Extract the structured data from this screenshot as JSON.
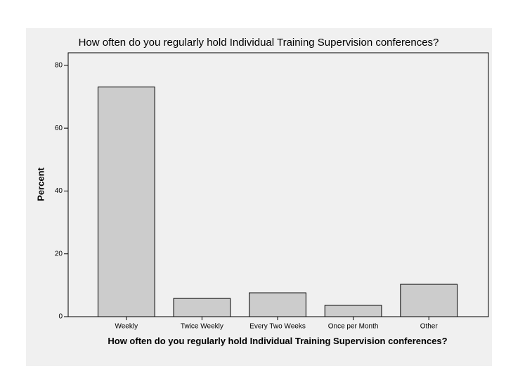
{
  "chart_data": {
    "type": "bar",
    "title": "How often do you regularly hold Individual Training Supervision conferences?",
    "x_label": "How often do you regularly hold Individual Training Supervision conferences?",
    "y_label": "Percent",
    "categories": [
      "Weekly",
      "Twice Weekly",
      "Every Two Weeks",
      "Once per Month",
      "Other"
    ],
    "values": [
      73.1,
      5.8,
      7.6,
      3.6,
      10.3
    ],
    "color": "#cccccc",
    "ylim": [
      0,
      84
    ],
    "yticks": [
      0,
      20,
      40,
      60,
      80
    ],
    "grid": false
  }
}
